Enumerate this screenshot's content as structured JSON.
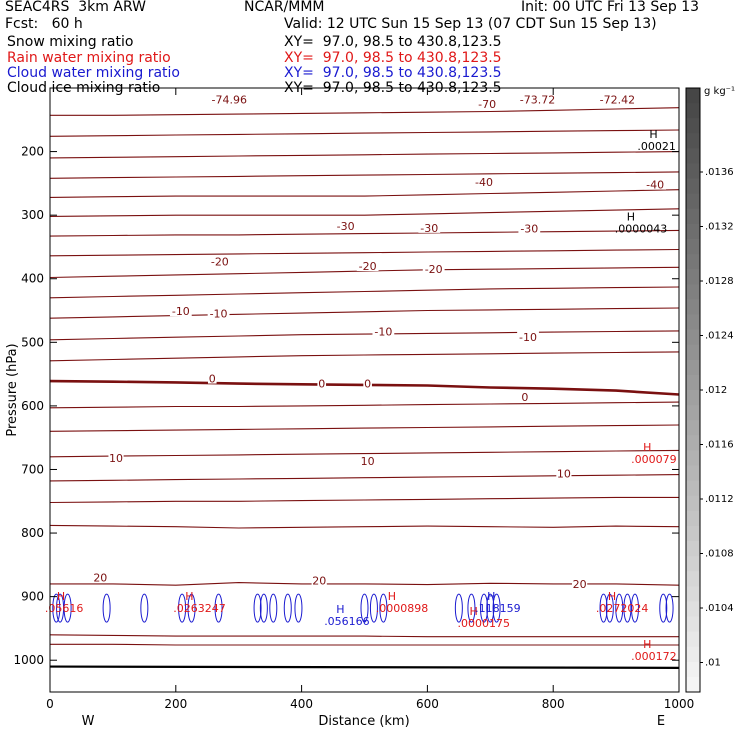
{
  "header": {
    "model": "SEAC4RS  3km ARW",
    "center": "NCAR/MMM",
    "init": "Init: 00 UTC Fri 13 Sep 13",
    "fcst": "Fcst:   60 h",
    "valid": "Valid: 12 UTC Sun 15 Sep 13 (07 CDT Sun 15 Sep 13)",
    "fields": [
      {
        "label": "Snow mixing ratio",
        "xy": "XY=  97.0, 98.5 to 430.8,123.5",
        "color": "#000000"
      },
      {
        "label": "Rain water mixing ratio",
        "xy": "XY=  97.0, 98.5 to 430.8,123.5",
        "color": "#e01818"
      },
      {
        "label": "Cloud water mixing ratio",
        "xy": "XY=  97.0, 98.5 to 430.8,123.5",
        "color": "#1a1ad0"
      },
      {
        "label": "Cloud ice mixing ratio",
        "xy": "XY=  97.0, 98.5 to 430.8,123.5",
        "color": "#000000"
      }
    ]
  },
  "chart_data": {
    "type": "line",
    "xlabel": "Distance (km)",
    "ylabel": "Pressure (hPa)",
    "xlim": [
      0,
      1000
    ],
    "ylim": [
      1050,
      100
    ],
    "x_ticks": [
      0,
      200,
      400,
      600,
      800,
      1000
    ],
    "y_ticks": [
      200,
      300,
      400,
      500,
      600,
      700,
      800,
      900,
      1000
    ],
    "end_labels": {
      "left": "W",
      "right": "E"
    },
    "temperature_contours": {
      "color": "#7a1010",
      "x": [
        0,
        100,
        200,
        300,
        400,
        500,
        600,
        700,
        800,
        900,
        1000
      ],
      "lines": [
        {
          "p": [
            143,
            143,
            142,
            141,
            140,
            139,
            138,
            137,
            135,
            133,
            131
          ]
        },
        {
          "p": [
            176,
            175,
            174,
            173,
            172,
            171,
            170,
            169,
            168,
            167,
            166
          ]
        },
        {
          "p": [
            210,
            209,
            208,
            207,
            206,
            205,
            204,
            203,
            202,
            201,
            200
          ]
        },
        {
          "p": [
            242,
            241,
            240,
            239,
            238,
            237,
            236,
            235,
            234,
            233,
            232
          ]
        },
        {
          "p": [
            272,
            271,
            270,
            270,
            270,
            270,
            268,
            266,
            264,
            262,
            260
          ]
        },
        {
          "p": [
            302,
            301,
            300,
            300,
            300,
            300,
            298,
            296,
            294,
            292,
            290
          ]
        },
        {
          "p": [
            333,
            332,
            331,
            331,
            330,
            329,
            328,
            327,
            326,
            325,
            324
          ]
        },
        {
          "p": [
            364,
            363,
            362,
            361,
            360,
            359,
            358,
            357,
            356,
            355,
            354
          ]
        },
        {
          "p": [
            398,
            396,
            394,
            392,
            390,
            388,
            386,
            385,
            384,
            383,
            382
          ]
        },
        {
          "p": [
            430,
            428,
            426,
            424,
            422,
            420,
            418,
            416,
            415,
            414,
            413
          ]
        },
        {
          "p": [
            462,
            460,
            458,
            456,
            454,
            452,
            450,
            449,
            448,
            447,
            446
          ]
        },
        {
          "p": [
            496,
            494,
            492,
            490,
            488,
            487,
            486,
            485,
            484,
            483,
            482
          ]
        },
        {
          "p": [
            529,
            527,
            525,
            523,
            521,
            520,
            519,
            518,
            517,
            516,
            515
          ]
        },
        {
          "p": [
            561,
            562,
            563,
            565,
            566,
            567,
            568,
            571,
            573,
            576,
            582
          ],
          "bold": true
        },
        {
          "p": [
            603,
            602,
            601,
            601,
            600,
            599,
            598,
            597,
            596,
            595,
            594
          ]
        },
        {
          "p": [
            640,
            639,
            638,
            637,
            636,
            635,
            634,
            633,
            632,
            631,
            630
          ]
        },
        {
          "p": [
            680,
            679,
            678,
            677,
            676,
            675,
            674,
            673,
            672,
            671,
            670
          ]
        },
        {
          "p": [
            718,
            717,
            716,
            715,
            714,
            713,
            712,
            711,
            710,
            709,
            708
          ]
        },
        {
          "p": [
            752,
            751,
            750,
            750,
            749,
            748,
            747,
            746,
            745,
            744,
            744
          ]
        },
        {
          "p": [
            788,
            789,
            790,
            792,
            791,
            790,
            789,
            790,
            791,
            789,
            790
          ]
        },
        {
          "p": [
            880,
            880,
            882,
            878,
            880,
            880,
            881,
            879,
            880,
            880,
            882
          ]
        },
        {
          "p": [
            960,
            961,
            962,
            962,
            962,
            962,
            963,
            963,
            963,
            963,
            963
          ]
        },
        {
          "p": [
            975,
            975,
            976,
            976,
            976,
            976,
            976,
            976,
            976,
            976,
            976
          ]
        }
      ],
      "labels": [
        {
          "text": "-74.96",
          "x": 285,
          "p": 118
        },
        {
          "text": "-70",
          "x": 695,
          "p": 125
        },
        {
          "text": "-73.72",
          "x": 775,
          "p": 118
        },
        {
          "text": "-72.42",
          "x": 902,
          "p": 118
        },
        {
          "text": "-40",
          "x": 690,
          "p": 248
        },
        {
          "text": "-40",
          "x": 962,
          "p": 252
        },
        {
          "text": "-30",
          "x": 470,
          "p": 317
        },
        {
          "text": "-30",
          "x": 603,
          "p": 320
        },
        {
          "text": "-30",
          "x": 762,
          "p": 321
        },
        {
          "text": "-20",
          "x": 270,
          "p": 373
        },
        {
          "text": "-20",
          "x": 505,
          "p": 380
        },
        {
          "text": "-20",
          "x": 610,
          "p": 385
        },
        {
          "text": "-10",
          "x": 208,
          "p": 451
        },
        {
          "text": "-10",
          "x": 268,
          "p": 455
        },
        {
          "text": "-10",
          "x": 530,
          "p": 483
        },
        {
          "text": "-10",
          "x": 760,
          "p": 492
        },
        {
          "text": "0",
          "x": 258,
          "p": 557
        },
        {
          "text": "0",
          "x": 432,
          "p": 565
        },
        {
          "text": "0",
          "x": 505,
          "p": 565
        },
        {
          "text": "0",
          "x": 755,
          "p": 586
        },
        {
          "text": "10",
          "x": 105,
          "p": 682
        },
        {
          "text": "10",
          "x": 505,
          "p": 687
        },
        {
          "text": "10",
          "x": 817,
          "p": 706
        },
        {
          "text": "20",
          "x": 80,
          "p": 870
        },
        {
          "text": "20",
          "x": 428,
          "p": 875
        },
        {
          "text": "20",
          "x": 842,
          "p": 880
        }
      ]
    },
    "surface_line": {
      "color": "#000000",
      "p": [
        1010,
        1012
      ]
    },
    "cloud_water_contours": {
      "color": "#1a1ad0",
      "x": [
        10,
        16,
        28,
        90,
        150,
        210,
        225,
        268,
        330,
        340,
        355,
        378,
        395,
        500,
        515,
        530,
        650,
        670,
        690,
        700,
        710,
        880,
        890,
        905,
        918,
        930,
        975,
        985
      ]
    },
    "maxima": [
      {
        "mark": "H",
        "value": ".00021",
        "x": 953,
        "p": 188,
        "color": "#000000"
      },
      {
        "mark": "H",
        "value": ".0000043",
        "x": 917,
        "p": 318,
        "color": "#000000"
      },
      {
        "mark": "H",
        "value": ".000079",
        "x": 943,
        "p": 680,
        "color": "#e01818"
      },
      {
        "mark": "H",
        "value": ".000172",
        "x": 943,
        "p": 990,
        "color": "#e01818"
      },
      {
        "mark": "H",
        "value": ".0000898",
        "x": 537,
        "p": 915,
        "color": "#e01818"
      },
      {
        "mark": "H",
        "value": ".0000175",
        "x": 667,
        "p": 938,
        "color": "#e01818"
      },
      {
        "mark": "H",
        "value": ".0263247",
        "x": 215,
        "p": 915,
        "color": "#e01818"
      },
      {
        "mark": "H",
        "value": ".0272024",
        "x": 887,
        "p": 915,
        "color": "#e01818"
      },
      {
        "mark": "H",
        "value": ".05616",
        "x": 11,
        "p": 915,
        "color": "#e01818"
      },
      {
        "mark": "H",
        "value": ".056166",
        "x": 455,
        "p": 935,
        "color": "#1a1ad0"
      },
      {
        "mark": "H",
        "value": ".118159",
        "x": 695,
        "p": 915,
        "color": "#1a1ad0"
      }
    ],
    "colorbar": {
      "unit": "g kg⁻¹",
      "ticks": [
        ".0136",
        ".0132",
        ".0128",
        ".0124",
        ".012",
        ".0116",
        ".0112",
        ".0108",
        ".0104",
        ".01"
      ]
    }
  }
}
